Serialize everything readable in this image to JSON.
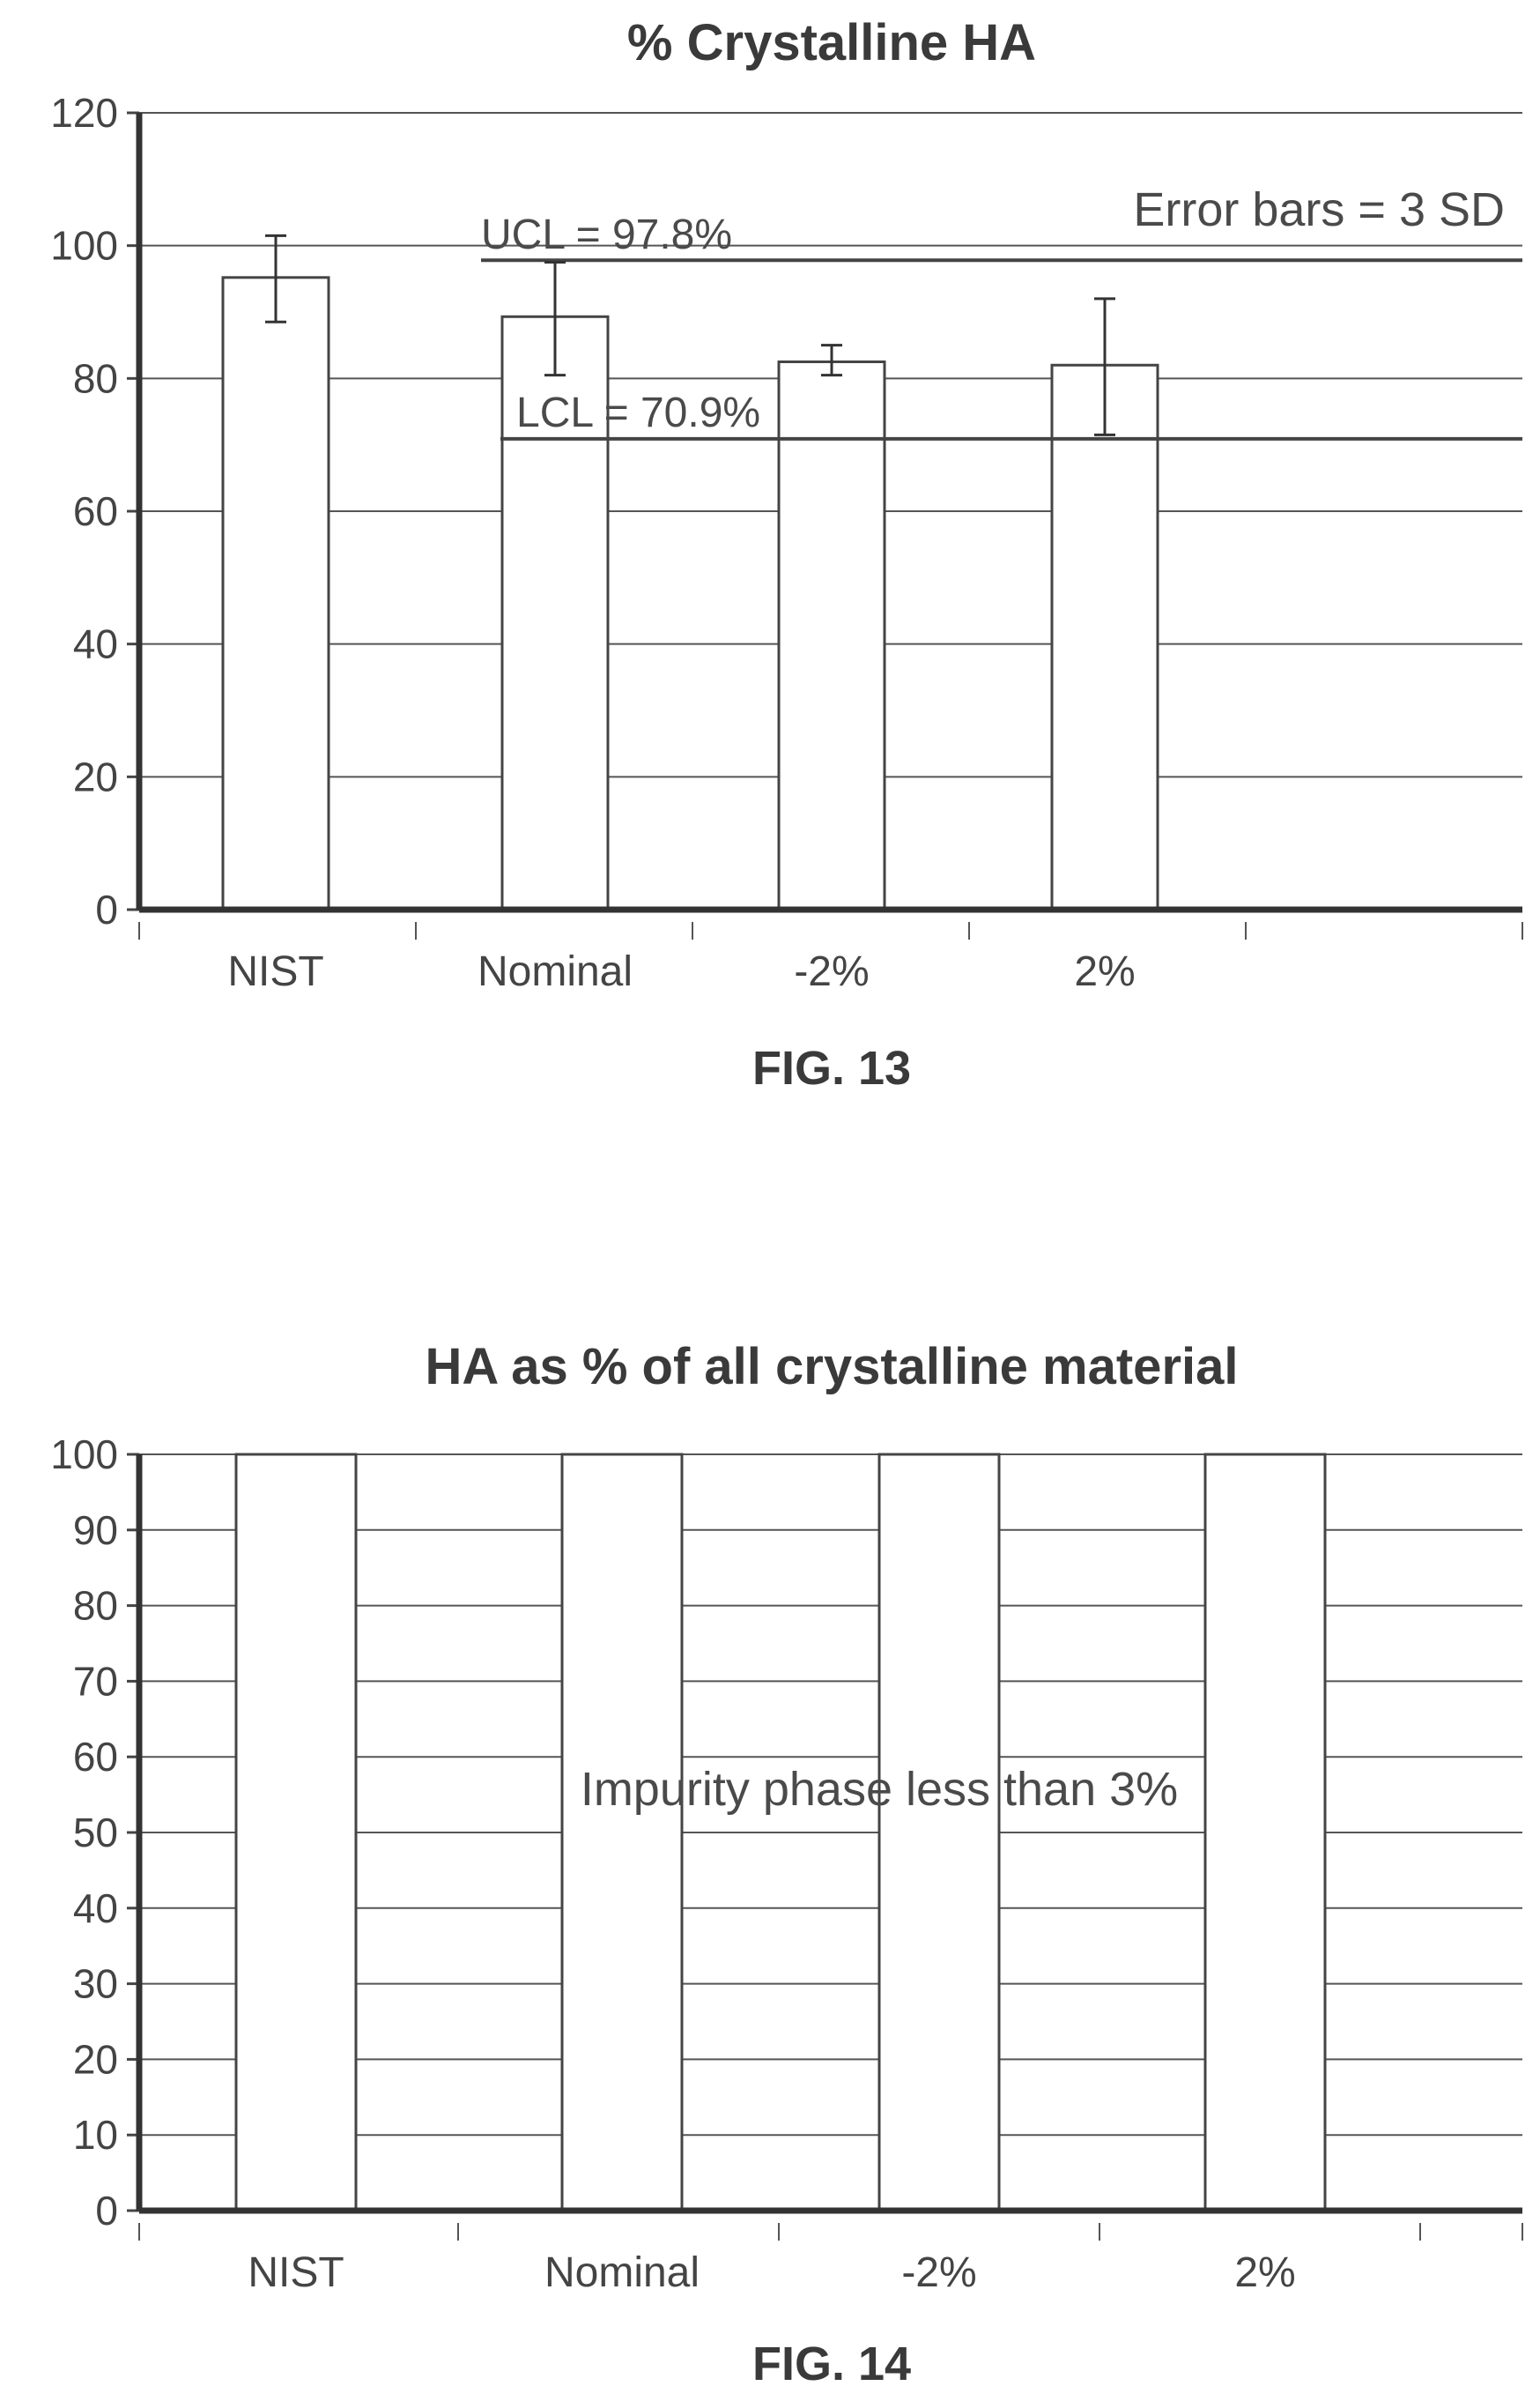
{
  "chart_data": [
    {
      "type": "bar",
      "title": "% Crystalline HA",
      "figure_label": "FIG. 13",
      "categories": [
        "NIST",
        "Nominal",
        "-2%",
        "2%"
      ],
      "values": [
        95.2,
        89.3,
        82.5,
        82.0
      ],
      "error_bars": [
        {
          "low": 88.5,
          "high": 101.5
        },
        {
          "low": 80.5,
          "high": 97.5
        },
        {
          "low": 80.5,
          "high": 85.0
        },
        {
          "low": 71.5,
          "high": 92.0
        }
      ],
      "reference_lines": [
        {
          "label": "UCL = 97.8%",
          "value": 97.8
        },
        {
          "label": "LCL = 70.9%",
          "value": 70.9
        }
      ],
      "annotation": "Error bars = 3 SD",
      "ylim": [
        0,
        120
      ],
      "yticks": [
        0,
        20,
        40,
        60,
        80,
        100,
        120
      ],
      "grid": true,
      "xlabel": "",
      "ylabel": ""
    },
    {
      "type": "bar",
      "title": "HA as % of all crystalline material",
      "figure_label": "FIG. 14",
      "categories": [
        "NIST",
        "Nominal",
        "-2%",
        "2%"
      ],
      "values": [
        100,
        100,
        100,
        100
      ],
      "annotation": "Impurity phase less than 3%",
      "ylim": [
        0,
        100
      ],
      "yticks": [
        0,
        10,
        20,
        30,
        40,
        50,
        60,
        70,
        80,
        90,
        100
      ],
      "grid": true,
      "xlabel": "",
      "ylabel": ""
    }
  ]
}
